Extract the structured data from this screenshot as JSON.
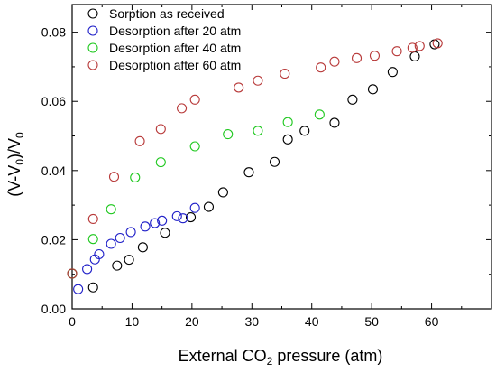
{
  "chart_data": {
    "type": "scatter",
    "xlabel": "External CO2 pressure (atm)",
    "xlabel_parts": {
      "prefix": "External CO",
      "sub": "2",
      "suffix": " pressure (atm)"
    },
    "ylabel": "(V-V0)/V0",
    "ylabel_parts": {
      "a": "(V-V",
      "sub1": "0",
      "b": ")/V",
      "sub2": "0"
    },
    "xlim": [
      0,
      70
    ],
    "ylim": [
      0,
      0.088
    ],
    "xticks": [
      0,
      10,
      20,
      30,
      40,
      50,
      60
    ],
    "yticks": [
      0.0,
      0.02,
      0.04,
      0.06,
      0.08
    ],
    "ytick_labels": [
      "0.00",
      "0.02",
      "0.04",
      "0.06",
      "0.08"
    ],
    "grid": false,
    "legend_position": "top-left",
    "series": [
      {
        "name": "Sorption as received",
        "color": "#000000",
        "points": [
          [
            0,
            0.0102
          ],
          [
            3.5,
            0.0062
          ],
          [
            7.5,
            0.0125
          ],
          [
            9.5,
            0.0142
          ],
          [
            11.8,
            0.0178
          ],
          [
            15.5,
            0.022
          ],
          [
            19.8,
            0.0265
          ],
          [
            22.8,
            0.0295
          ],
          [
            25.2,
            0.0337
          ],
          [
            29.5,
            0.0395
          ],
          [
            33.8,
            0.0425
          ],
          [
            36,
            0.049
          ],
          [
            38.8,
            0.0515
          ],
          [
            43.8,
            0.0538
          ],
          [
            46.8,
            0.0605
          ],
          [
            50.2,
            0.0635
          ],
          [
            53.5,
            0.0685
          ],
          [
            57.2,
            0.073
          ],
          [
            60.5,
            0.0765
          ]
        ]
      },
      {
        "name": "Desorption after 20 atm",
        "color": "#1f1fc8",
        "points": [
          [
            1,
            0.0057
          ],
          [
            2.5,
            0.0115
          ],
          [
            3.8,
            0.0143
          ],
          [
            4.5,
            0.0158
          ],
          [
            6.5,
            0.0188
          ],
          [
            8,
            0.0205
          ],
          [
            9.8,
            0.0222
          ],
          [
            12.2,
            0.0238
          ],
          [
            13.8,
            0.0248
          ],
          [
            15,
            0.0255
          ],
          [
            17.5,
            0.0268
          ],
          [
            18.5,
            0.0262
          ],
          [
            20.5,
            0.0292
          ]
        ]
      },
      {
        "name": "Desorption after 40 atm",
        "color": "#1fc81f",
        "points": [
          [
            0,
            0.0102
          ],
          [
            3.5,
            0.0202
          ],
          [
            6.5,
            0.0288
          ],
          [
            10.5,
            0.038
          ],
          [
            14.8,
            0.0424
          ],
          [
            20.5,
            0.047
          ],
          [
            26,
            0.0505
          ],
          [
            31,
            0.0515
          ],
          [
            36,
            0.054
          ],
          [
            41.3,
            0.0562
          ]
        ]
      },
      {
        "name": "Desorption after 60 atm",
        "color": "#b83a3a",
        "points": [
          [
            0,
            0.0102
          ],
          [
            3.5,
            0.026
          ],
          [
            7,
            0.0382
          ],
          [
            11.3,
            0.0485
          ],
          [
            14.8,
            0.052
          ],
          [
            18.3,
            0.058
          ],
          [
            20.5,
            0.0605
          ],
          [
            27.8,
            0.064
          ],
          [
            31,
            0.066
          ],
          [
            35.5,
            0.068
          ],
          [
            41.5,
            0.0698
          ],
          [
            43.8,
            0.0715
          ],
          [
            47.5,
            0.0725
          ],
          [
            50.5,
            0.0732
          ],
          [
            54.2,
            0.0745
          ],
          [
            56.8,
            0.0755
          ],
          [
            58,
            0.076
          ],
          [
            61,
            0.0768
          ]
        ]
      }
    ]
  }
}
